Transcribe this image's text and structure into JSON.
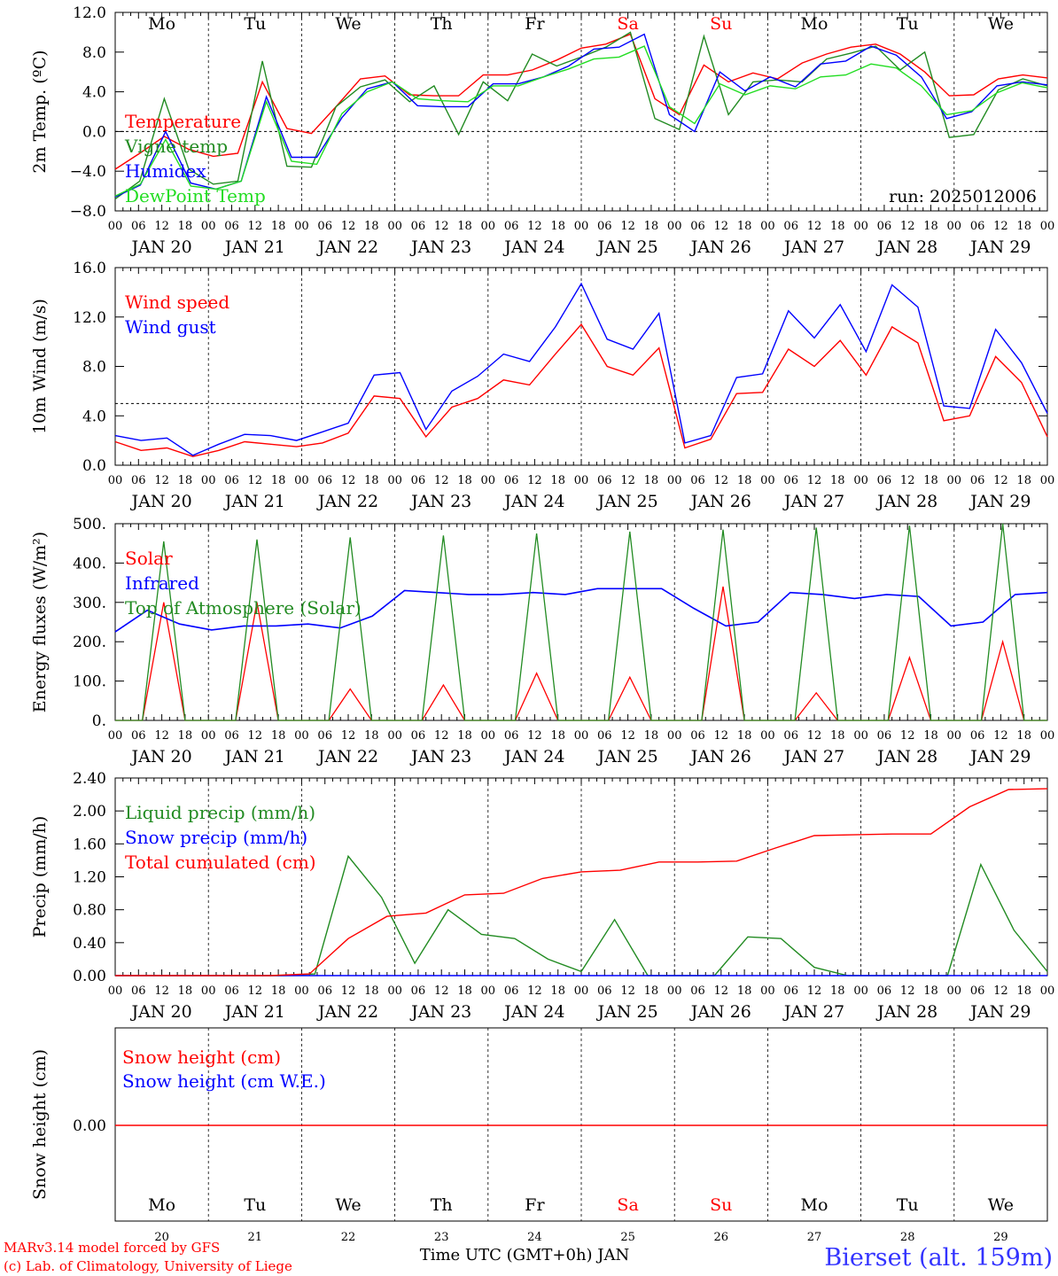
{
  "footer": {
    "model_credit": "MARv3.14 model forced by GFS",
    "copyright": "(c) Lab. of Climatology, University of Liege",
    "time_axis_title": "Time UTC (GMT+0h) JAN",
    "station": "Bierset (alt. 159m)"
  },
  "colors": {
    "red": "#ff0000",
    "green": "#228b22",
    "blue": "#0000ff",
    "lightgreen": "#22dd22",
    "station": "#3333ff"
  },
  "chart_data": [
    {
      "type": "line",
      "id": "temperature",
      "ylabel": "2m Temp. (ºC)",
      "ylim": [
        -8,
        12
      ],
      "yticks": [
        "12.0",
        "8.0",
        "4.0",
        "0.0",
        "−4.0",
        "−8.0"
      ],
      "ytick_values": [
        12,
        8,
        4,
        0,
        -4,
        -8
      ],
      "reference_line": 0,
      "run_label": "run: 2025012006",
      "weekdays": [
        "Mo",
        "Tu",
        "We",
        "Th",
        "Fr",
        "Sa",
        "Su",
        "Mo",
        "Tu",
        "We"
      ],
      "weekend_days": [
        "Sa",
        "Su"
      ],
      "x_hours": [
        0,
        6,
        12,
        18,
        24,
        30,
        36,
        42,
        48,
        54,
        60,
        66,
        72,
        78,
        84,
        90,
        96,
        102,
        108,
        114,
        120,
        126,
        132,
        138,
        144,
        150,
        156,
        162,
        168,
        174,
        180,
        186,
        192,
        198,
        204,
        210,
        216,
        222,
        228,
        234,
        240
      ],
      "series": [
        {
          "name": "Temperature",
          "color": "red",
          "values": [
            -3.8,
            -2.2,
            -0.5,
            -1.8,
            -2.5,
            -2.2,
            5.0,
            0.3,
            -0.2,
            2.5,
            5.3,
            5.6,
            3.7,
            3.6,
            3.6,
            5.7,
            5.7,
            6.2,
            7.2,
            8.4,
            8.8,
            9.8,
            3.3,
            1.7,
            6.7,
            5.0,
            5.9,
            5.3,
            6.9,
            7.8,
            8.5,
            8.8,
            7.8,
            6.0,
            3.6,
            3.7,
            5.3,
            5.7,
            5.4
          ]
        },
        {
          "name": "Vigne temp",
          "color": "green",
          "values": [
            -6.8,
            -5.0,
            3.3,
            -3.8,
            -5.3,
            -5.0,
            7.1,
            -3.5,
            -3.6,
            2.5,
            4.5,
            5.2,
            3.0,
            4.6,
            -0.3,
            5.0,
            3.1,
            7.8,
            6.6,
            7.5,
            8.5,
            10.0,
            1.3,
            0.2,
            9.6,
            1.7,
            5.0,
            5.2,
            5.0,
            7.3,
            7.9,
            8.6,
            6.2,
            8.0,
            -0.6,
            -0.3,
            4.2,
            5.3,
            4.6
          ]
        },
        {
          "name": "Humidex",
          "color": "blue",
          "values": [
            -6.6,
            -5.4,
            0.0,
            -5.2,
            -5.8,
            -5.0,
            3.5,
            -2.6,
            -2.6,
            1.4,
            4.3,
            5.0,
            2.6,
            2.5,
            2.5,
            4.8,
            4.8,
            5.5,
            6.6,
            8.3,
            8.5,
            9.8,
            1.7,
            0.0,
            6.0,
            4.1,
            5.5,
            4.5,
            6.8,
            7.1,
            8.6,
            7.7,
            5.5,
            1.3,
            2.0,
            4.6,
            5.0,
            4.7
          ]
        },
        {
          "name": "DewPoint Temp",
          "color": "lightgreen",
          "values": [
            -6.5,
            -5.3,
            -0.8,
            -5.5,
            -5.8,
            -5.0,
            3.0,
            -3.0,
            -3.3,
            1.8,
            4.0,
            5.0,
            3.3,
            3.1,
            3.0,
            4.6,
            4.6,
            5.5,
            6.3,
            7.3,
            7.5,
            8.6,
            2.5,
            0.8,
            4.8,
            3.7,
            4.6,
            4.3,
            5.5,
            5.7,
            6.8,
            6.4,
            4.6,
            1.7,
            2.1,
            3.9,
            4.9,
            4.4
          ]
        }
      ]
    },
    {
      "type": "line",
      "id": "wind",
      "ylabel": "10m Wind (m/s)",
      "ylim": [
        0,
        16
      ],
      "yticks": [
        "16.0",
        "12.0",
        "8.0",
        "4.0",
        "0.0"
      ],
      "ytick_values": [
        16,
        12,
        8,
        4,
        0
      ],
      "reference_line": 5,
      "series": [
        {
          "name": "Wind speed",
          "color": "red",
          "values": [
            1.9,
            1.2,
            1.4,
            0.7,
            1.2,
            1.9,
            1.7,
            1.5,
            1.8,
            2.6,
            5.6,
            5.4,
            2.3,
            4.7,
            5.4,
            6.9,
            6.5,
            9.0,
            11.4,
            8.0,
            7.3,
            9.5,
            1.4,
            2.1,
            5.8,
            5.9,
            9.4,
            8.0,
            10.1,
            7.3,
            11.2,
            9.9,
            3.6,
            4.0,
            8.8,
            6.7,
            2.3
          ]
        },
        {
          "name": "Wind gust",
          "color": "blue",
          "values": [
            2.4,
            2.0,
            2.2,
            0.8,
            1.7,
            2.5,
            2.4,
            2.0,
            2.7,
            3.4,
            7.3,
            7.5,
            2.9,
            6.0,
            7.2,
            9.0,
            8.4,
            11.2,
            14.7,
            10.2,
            9.4,
            12.3,
            1.8,
            2.4,
            7.1,
            7.4,
            12.5,
            10.3,
            13.0,
            9.2,
            14.6,
            12.8,
            4.8,
            4.6,
            11.0,
            8.3,
            4.2
          ]
        }
      ]
    },
    {
      "type": "line",
      "id": "energy",
      "ylabel": "Energy fluxes (W/m²)",
      "ylim": [
        0,
        500
      ],
      "yticks": [
        "500.",
        "400.",
        "300.",
        "200.",
        "100.",
        "0."
      ],
      "ytick_values": [
        500,
        400,
        300,
        200,
        100,
        0
      ],
      "series": [
        {
          "name": "Solar",
          "color": "red",
          "peaks": [
            300,
            300,
            80,
            90,
            120,
            110,
            340,
            70,
            160,
            200
          ]
        },
        {
          "name": "Infrared",
          "color": "blue",
          "values": [
            225,
            280,
            245,
            230,
            240,
            240,
            245,
            235,
            265,
            330,
            325,
            320,
            320,
            325,
            320,
            335,
            335,
            335,
            285,
            240,
            250,
            325,
            320,
            310,
            320,
            315,
            240,
            250,
            320,
            325
          ]
        },
        {
          "name": "Top of Atmosphere (Solar)",
          "color": "green",
          "peaks": [
            455,
            460,
            465,
            470,
            475,
            480,
            485,
            490,
            495,
            500
          ]
        }
      ]
    },
    {
      "type": "line",
      "id": "precip",
      "ylabel": "Precip (mm/h)",
      "ylim": [
        0,
        2.4
      ],
      "yticks": [
        "2.40",
        "2.00",
        "1.60",
        "1.20",
        "0.80",
        "0.40",
        "0.00"
      ],
      "ytick_values": [
        2.4,
        2.0,
        1.6,
        1.2,
        0.8,
        0.4,
        0.0
      ],
      "series": [
        {
          "name": "Liquid precip (mm/h)",
          "color": "green",
          "values": [
            0,
            0,
            0,
            0,
            0,
            0,
            0.02,
            1.45,
            0.95,
            0.15,
            0.8,
            0.5,
            0.45,
            0.2,
            0.05,
            0.68,
            0,
            0,
            0,
            0.47,
            0.45,
            0.1,
            0,
            0,
            0,
            0,
            1.35,
            0.55,
            0.05
          ]
        },
        {
          "name": "Snow precip (mm/h)",
          "color": "blue",
          "values": [
            0
          ]
        },
        {
          "name": "Total cumulated (cm)",
          "color": "red",
          "values": [
            0,
            0,
            0,
            0,
            0,
            0.02,
            0.45,
            0.72,
            0.76,
            0.98,
            1.0,
            1.18,
            1.26,
            1.28,
            1.38,
            1.38,
            1.39,
            1.55,
            1.7,
            1.71,
            1.72,
            1.72,
            2.05,
            2.26,
            2.27
          ]
        }
      ]
    },
    {
      "type": "line",
      "id": "snow",
      "ylabel": "Snow height (cm)",
      "yticks": [
        "0.00"
      ],
      "ytick_values": [
        0
      ],
      "series": [
        {
          "name": "Snow height (cm)",
          "color": "red",
          "values": [
            0
          ]
        },
        {
          "name": "Snow height (cm W.E.)",
          "color": "blue",
          "values": [
            0
          ]
        }
      ]
    }
  ],
  "x_axis": {
    "hour_ticks": [
      "00",
      "06",
      "12",
      "18"
    ],
    "end_tick": "00",
    "dates": [
      "JAN 20",
      "JAN 21",
      "JAN 22",
      "JAN 23",
      "JAN 24",
      "JAN 25",
      "JAN 26",
      "JAN 27",
      "JAN 28",
      "JAN 29"
    ],
    "day_numbers": [
      "20",
      "21",
      "22",
      "23",
      "24",
      "25",
      "26",
      "27",
      "28",
      "29"
    ]
  }
}
